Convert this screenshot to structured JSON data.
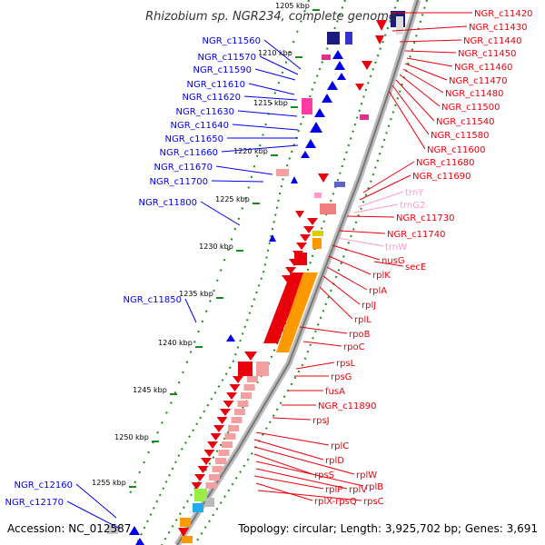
{
  "title": "Rhizobium sp. NGR234, complete genome",
  "accession": "Accession: NC_012587",
  "topology": "Topology: circular; Length: 3,925,702 bp; Genes: 3,691",
  "colors": {
    "forward": "#e8000a",
    "reverse": "#0000e8",
    "trna": "#ff99cc",
    "rrna_like": "#ff9900",
    "pseudo": "#f4a0a0",
    "tick": "#1a8a1a",
    "backbone": "#999999"
  },
  "scale_labels": [
    "1205 kbp",
    "1210 kbp",
    "1215 kbp",
    "1220 kbp",
    "1225 kbp",
    "1230 kbp",
    "1235 kbp",
    "1240 kbp",
    "1245 kbp",
    "1250 kbp",
    "1255 kbp"
  ],
  "left_labels": [
    "NGR_c11560",
    "NGR_c11570",
    "NGR_c11590",
    "NGR_c11610",
    "NGR_c11620",
    "NGR_c11630",
    "NGR_c11640",
    "NGR_c11650",
    "NGR_c11660",
    "NGR_c11670",
    "NGR_c11700",
    "NGR_c11800",
    "NGR_c11850",
    "NGR_c12160",
    "NGR_c12170"
  ],
  "right_labels": [
    {
      "text": "NGR_c11420",
      "kind": "forward"
    },
    {
      "text": "NGR_c11430",
      "kind": "forward"
    },
    {
      "text": "NGR_c11440",
      "kind": "forward"
    },
    {
      "text": "NGR_c11450",
      "kind": "forward"
    },
    {
      "text": "NGR_c11460",
      "kind": "forward"
    },
    {
      "text": "NGR_c11470",
      "kind": "forward"
    },
    {
      "text": "NGR_c11480",
      "kind": "forward"
    },
    {
      "text": "NGR_c11500",
      "kind": "forward"
    },
    {
      "text": "NGR_c11540",
      "kind": "forward"
    },
    {
      "text": "NGR_c11580",
      "kind": "forward"
    },
    {
      "text": "NGR_c11600",
      "kind": "forward"
    },
    {
      "text": "NGR_c11680",
      "kind": "forward"
    },
    {
      "text": "NGR_c11690",
      "kind": "forward"
    },
    {
      "text": "trnY",
      "kind": "trna"
    },
    {
      "text": "trnG2",
      "kind": "trna"
    },
    {
      "text": "NGR_c11730",
      "kind": "forward"
    },
    {
      "text": "NGR_c11740",
      "kind": "forward"
    },
    {
      "text": "trnW",
      "kind": "trna"
    },
    {
      "text": "nusG",
      "kind": "forward"
    },
    {
      "text": "secE",
      "kind": "forward"
    },
    {
      "text": "rplK",
      "kind": "forward"
    },
    {
      "text": "rplA",
      "kind": "forward"
    },
    {
      "text": "rplJ",
      "kind": "forward"
    },
    {
      "text": "rplL",
      "kind": "forward"
    },
    {
      "text": "rpoB",
      "kind": "forward"
    },
    {
      "text": "rpoC",
      "kind": "forward"
    },
    {
      "text": "rpsL",
      "kind": "forward"
    },
    {
      "text": "rpsG",
      "kind": "forward"
    },
    {
      "text": "fusA",
      "kind": "forward"
    },
    {
      "text": "NGR_c11890",
      "kind": "forward"
    },
    {
      "text": "rpsJ",
      "kind": "forward"
    },
    {
      "text": "rplC",
      "kind": "forward"
    },
    {
      "text": "rplD",
      "kind": "forward"
    },
    {
      "text": "rplW",
      "kind": "forward"
    },
    {
      "text": "rpsS",
      "kind": "forward"
    },
    {
      "text": "rplB",
      "kind": "forward"
    },
    {
      "text": "rplV",
      "kind": "forward"
    },
    {
      "text": "rplP",
      "kind": "forward"
    },
    {
      "text": "rplX-rpsQ",
      "kind": "forward"
    },
    {
      "text": "rpsC",
      "kind": "forward"
    }
  ]
}
